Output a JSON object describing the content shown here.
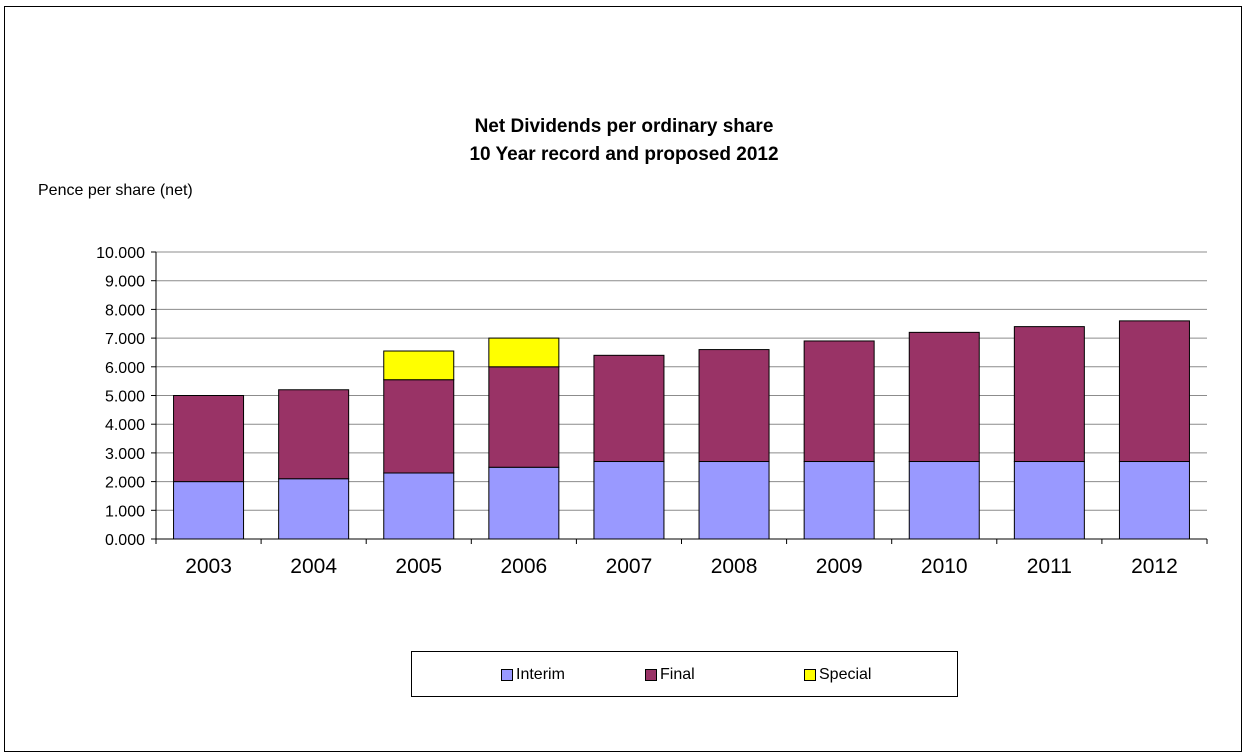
{
  "colors": {
    "interim": "#9999ff",
    "final": "#993366",
    "special": "#ffff00"
  },
  "chart_data": {
    "type": "bar",
    "stacked": true,
    "title": "Net Dividends per ordinary share",
    "subtitle": "10 Year record and proposed 2012",
    "ylabel": "Pence per share (net)",
    "xlabel": "",
    "categories": [
      "2003",
      "2004",
      "2005",
      "2006",
      "2007",
      "2008",
      "2009",
      "2010",
      "2011",
      "2012"
    ],
    "ylim": [
      0,
      10
    ],
    "yticks": [
      "0.000",
      "1.000",
      "2.000",
      "3.000",
      "4.000",
      "5.000",
      "6.000",
      "7.000",
      "8.000",
      "9.000",
      "10.000"
    ],
    "grid": true,
    "legend_position": "bottom",
    "series": [
      {
        "name": "Interim",
        "values": [
          2.0,
          2.1,
          2.3,
          2.5,
          2.7,
          2.7,
          2.7,
          2.7,
          2.7,
          2.7
        ]
      },
      {
        "name": "Final",
        "values": [
          3.0,
          3.1,
          3.25,
          3.5,
          3.7,
          3.9,
          4.2,
          4.5,
          4.7,
          4.9
        ]
      },
      {
        "name": "Special",
        "values": [
          0,
          0,
          1.0,
          1.0,
          0,
          0,
          0,
          0,
          0,
          0
        ]
      }
    ]
  }
}
